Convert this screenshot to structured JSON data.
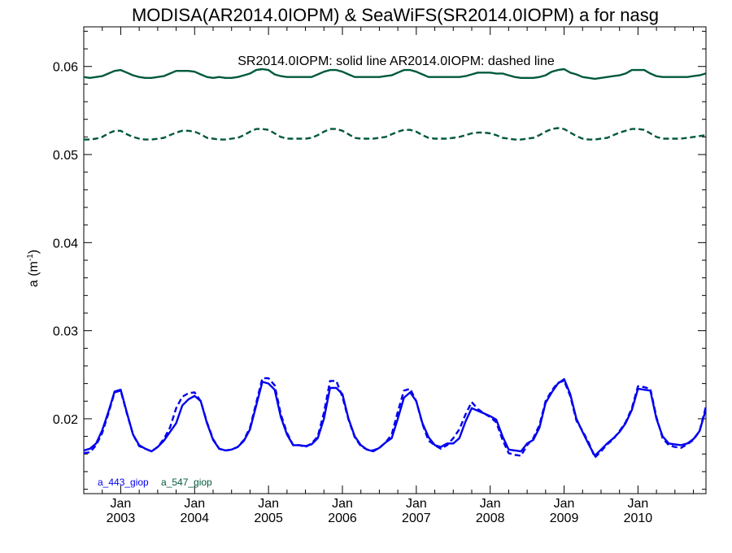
{
  "chart_data": {
    "type": "line",
    "title": "MODISA(AR2014.0IOPM) & SeaWiFS(SR2014.0IOPM)  a for nasg",
    "subtitle": "SR2014.0IOPM: solid line   AR2014.0IOPM: dashed line",
    "ylabel_main": "a (m",
    "ylabel_sup": "-1",
    "ylabel_end": ")",
    "xlabel": "",
    "xlim": [
      2002.5,
      2010.92
    ],
    "ylim": [
      0.0115,
      0.0645
    ],
    "yticks": [
      0.02,
      0.03,
      0.04,
      0.05,
      0.06
    ],
    "ytick_labels": [
      "0.02",
      "0.03",
      "0.04",
      "0.05",
      "0.06"
    ],
    "xticks": [
      2003.0,
      2004.0,
      2005.0,
      2006.0,
      2007.0,
      2008.0,
      2009.0,
      2010.0
    ],
    "xtick_month_labels": [
      "Jan",
      "Jan",
      "Jan",
      "Jan",
      "Jan",
      "Jan",
      "Jan",
      "Jan"
    ],
    "xtick_year_labels": [
      "2003",
      "2004",
      "2005",
      "2006",
      "2007",
      "2008",
      "2009",
      "2010"
    ],
    "legend": [
      {
        "label": "a_443_giop",
        "color": "#0000ee"
      },
      {
        "label": "a_547_giop",
        "color": "#00593a"
      }
    ],
    "legend_position": "bottom-left",
    "grid": false,
    "series": [
      {
        "name": "a_443_giop",
        "style": "solid",
        "color": "#0000ee",
        "x": [
          2002.5,
          2002.583,
          2002.667,
          2002.75,
          2002.833,
          2002.917,
          2003.0,
          2003.083,
          2003.167,
          2003.25,
          2003.333,
          2003.417,
          2003.5,
          2003.583,
          2003.667,
          2003.75,
          2003.833,
          2003.917,
          2004.0,
          2004.083,
          2004.167,
          2004.25,
          2004.333,
          2004.417,
          2004.5,
          2004.583,
          2004.667,
          2004.75,
          2004.833,
          2004.917,
          2005.0,
          2005.083,
          2005.167,
          2005.25,
          2005.333,
          2005.417,
          2005.5,
          2005.583,
          2005.667,
          2005.75,
          2005.833,
          2005.917,
          2006.0,
          2006.083,
          2006.167,
          2006.25,
          2006.333,
          2006.417,
          2006.5,
          2006.583,
          2006.667,
          2006.75,
          2006.833,
          2006.917,
          2007.0,
          2007.083,
          2007.167,
          2007.25,
          2007.333,
          2007.417,
          2007.5,
          2007.583,
          2007.667,
          2007.75,
          2007.833,
          2007.917,
          2008.0,
          2008.083,
          2008.167,
          2008.25,
          2008.333,
          2008.417,
          2008.5,
          2008.583,
          2008.667,
          2008.75,
          2008.833,
          2008.917,
          2009.0,
          2009.083,
          2009.167,
          2009.25,
          2009.333,
          2009.417,
          2009.5,
          2009.583,
          2009.667,
          2009.75,
          2009.833,
          2009.917,
          2010.0,
          2010.083,
          2010.167,
          2010.25,
          2010.333,
          2010.417,
          2010.5,
          2010.583,
          2010.667,
          2010.75,
          2010.833,
          2010.917
        ],
        "values": [
          0.0164,
          0.0166,
          0.0172,
          0.0187,
          0.0208,
          0.0231,
          0.0233,
          0.0207,
          0.0182,
          0.017,
          0.0166,
          0.0163,
          0.0168,
          0.0175,
          0.0185,
          0.0195,
          0.0215,
          0.0222,
          0.0226,
          0.022,
          0.0195,
          0.0176,
          0.0166,
          0.0164,
          0.0165,
          0.0168,
          0.0175,
          0.0188,
          0.0215,
          0.0242,
          0.024,
          0.0233,
          0.0202,
          0.0182,
          0.017,
          0.017,
          0.0169,
          0.0171,
          0.0178,
          0.02,
          0.0235,
          0.0235,
          0.0228,
          0.02,
          0.018,
          0.017,
          0.0165,
          0.0163,
          0.0167,
          0.0173,
          0.0178,
          0.02,
          0.0224,
          0.023,
          0.022,
          0.0195,
          0.0179,
          0.017,
          0.0168,
          0.0172,
          0.0172,
          0.0178,
          0.0197,
          0.0212,
          0.0209,
          0.0206,
          0.0203,
          0.0199,
          0.018,
          0.0165,
          0.0164,
          0.0163,
          0.0172,
          0.0176,
          0.019,
          0.0218,
          0.023,
          0.024,
          0.0245,
          0.0228,
          0.02,
          0.0185,
          0.0171,
          0.0158,
          0.0165,
          0.0172,
          0.0178,
          0.0185,
          0.0195,
          0.021,
          0.0234,
          0.0233,
          0.0232,
          0.02,
          0.018,
          0.0172,
          0.0171,
          0.017,
          0.0172,
          0.0177,
          0.0186,
          0.021
        ]
      },
      {
        "name": "a_443_giop",
        "style": "dashed",
        "color": "#0000ee",
        "x": [
          2002.5,
          2002.583,
          2002.667,
          2002.75,
          2002.833,
          2002.917,
          2003.0,
          2003.083,
          2003.167,
          2003.25,
          2003.333,
          2003.417,
          2003.5,
          2003.583,
          2003.667,
          2003.75,
          2003.833,
          2003.917,
          2004.0,
          2004.083,
          2004.167,
          2004.25,
          2004.333,
          2004.417,
          2004.5,
          2004.583,
          2004.667,
          2004.75,
          2004.833,
          2004.917,
          2005.0,
          2005.083,
          2005.167,
          2005.25,
          2005.333,
          2005.417,
          2005.5,
          2005.583,
          2005.667,
          2005.75,
          2005.833,
          2005.917,
          2006.0,
          2006.083,
          2006.167,
          2006.25,
          2006.333,
          2006.417,
          2006.5,
          2006.583,
          2006.667,
          2006.75,
          2006.833,
          2006.917,
          2007.0,
          2007.083,
          2007.167,
          2007.25,
          2007.333,
          2007.417,
          2007.5,
          2007.583,
          2007.667,
          2007.75,
          2007.833,
          2007.917,
          2008.0,
          2008.083,
          2008.167,
          2008.25,
          2008.333,
          2008.417,
          2008.5,
          2008.583,
          2008.667,
          2008.75,
          2008.833,
          2008.917,
          2009.0,
          2009.083,
          2009.167,
          2009.25,
          2009.333,
          2009.417,
          2009.5,
          2009.583,
          2009.667,
          2009.75,
          2009.833,
          2009.917,
          2010.0,
          2010.083,
          2010.167,
          2010.25,
          2010.333,
          2010.417,
          2010.5,
          2010.583,
          2010.667,
          2010.75,
          2010.833,
          2010.917
        ],
        "values": [
          0.0161,
          0.0162,
          0.017,
          0.0184,
          0.0206,
          0.023,
          0.0232,
          0.0206,
          0.0182,
          0.0169,
          0.0166,
          0.0163,
          0.0168,
          0.0177,
          0.019,
          0.0212,
          0.0225,
          0.0229,
          0.023,
          0.022,
          0.0196,
          0.0177,
          0.0166,
          0.0164,
          0.0165,
          0.0168,
          0.0176,
          0.019,
          0.0218,
          0.0246,
          0.0246,
          0.0238,
          0.0205,
          0.0184,
          0.017,
          0.017,
          0.0168,
          0.0172,
          0.018,
          0.0207,
          0.0243,
          0.0243,
          0.0225,
          0.0199,
          0.0179,
          0.0169,
          0.0165,
          0.0164,
          0.0167,
          0.0173,
          0.0182,
          0.0208,
          0.0232,
          0.0234,
          0.022,
          0.0194,
          0.0175,
          0.017,
          0.0166,
          0.017,
          0.0178,
          0.0188,
          0.0205,
          0.0219,
          0.0211,
          0.0206,
          0.0202,
          0.0196,
          0.0176,
          0.0161,
          0.0159,
          0.0158,
          0.017,
          0.0178,
          0.0193,
          0.022,
          0.0232,
          0.0241,
          0.0243,
          0.0226,
          0.0198,
          0.0186,
          0.0173,
          0.0156,
          0.0163,
          0.0171,
          0.0177,
          0.0186,
          0.0196,
          0.0212,
          0.0237,
          0.0236,
          0.0234,
          0.0202,
          0.0178,
          0.017,
          0.0168,
          0.0167,
          0.0171,
          0.0176,
          0.0186,
          0.0213
        ]
      },
      {
        "name": "a_547_giop",
        "style": "solid",
        "color": "#00593a",
        "x": [
          2002.5,
          2002.583,
          2002.667,
          2002.75,
          2002.833,
          2002.917,
          2003.0,
          2003.083,
          2003.167,
          2003.25,
          2003.333,
          2003.417,
          2003.5,
          2003.583,
          2003.667,
          2003.75,
          2003.833,
          2003.917,
          2004.0,
          2004.083,
          2004.167,
          2004.25,
          2004.333,
          2004.417,
          2004.5,
          2004.583,
          2004.667,
          2004.75,
          2004.833,
          2004.917,
          2005.0,
          2005.083,
          2005.167,
          2005.25,
          2005.333,
          2005.417,
          2005.5,
          2005.583,
          2005.667,
          2005.75,
          2005.833,
          2005.917,
          2006.0,
          2006.083,
          2006.167,
          2006.25,
          2006.333,
          2006.417,
          2006.5,
          2006.583,
          2006.667,
          2006.75,
          2006.833,
          2006.917,
          2007.0,
          2007.083,
          2007.167,
          2007.25,
          2007.333,
          2007.417,
          2007.5,
          2007.583,
          2007.667,
          2007.75,
          2007.833,
          2007.917,
          2008.0,
          2008.083,
          2008.167,
          2008.25,
          2008.333,
          2008.417,
          2008.5,
          2008.583,
          2008.667,
          2008.75,
          2008.833,
          2008.917,
          2009.0,
          2009.083,
          2009.167,
          2009.25,
          2009.333,
          2009.417,
          2009.5,
          2009.583,
          2009.667,
          2009.75,
          2009.833,
          2009.917,
          2010.0,
          2010.083,
          2010.167,
          2010.25,
          2010.333,
          2010.417,
          2010.5,
          2010.583,
          2010.667,
          2010.75,
          2010.833,
          2010.917
        ],
        "values": [
          0.0588,
          0.0587,
          0.0588,
          0.0589,
          0.0592,
          0.0595,
          0.0596,
          0.0593,
          0.059,
          0.0588,
          0.0587,
          0.0587,
          0.0588,
          0.0589,
          0.0592,
          0.0595,
          0.0595,
          0.0595,
          0.0594,
          0.0591,
          0.0588,
          0.0587,
          0.0588,
          0.0587,
          0.0587,
          0.0588,
          0.059,
          0.0592,
          0.0596,
          0.0597,
          0.0596,
          0.0591,
          0.0589,
          0.0588,
          0.0588,
          0.0588,
          0.0588,
          0.0588,
          0.0591,
          0.0594,
          0.0596,
          0.0596,
          0.0594,
          0.0591,
          0.0588,
          0.0588,
          0.0588,
          0.0588,
          0.0588,
          0.0589,
          0.059,
          0.0593,
          0.0596,
          0.0596,
          0.0594,
          0.0591,
          0.0588,
          0.0588,
          0.0588,
          0.0588,
          0.0588,
          0.0588,
          0.0589,
          0.0591,
          0.0593,
          0.0593,
          0.0593,
          0.0592,
          0.0592,
          0.059,
          0.0588,
          0.0587,
          0.0587,
          0.0587,
          0.0588,
          0.059,
          0.0594,
          0.0596,
          0.0597,
          0.0593,
          0.0591,
          0.0588,
          0.0587,
          0.0586,
          0.0587,
          0.0588,
          0.0589,
          0.059,
          0.0592,
          0.0596,
          0.0596,
          0.0596,
          0.0592,
          0.0589,
          0.0588,
          0.0588,
          0.0588,
          0.0588,
          0.0588,
          0.0589,
          0.059,
          0.0592
        ]
      },
      {
        "name": "a_547_giop",
        "style": "dashed",
        "color": "#00593a",
        "x": [
          2002.5,
          2002.583,
          2002.667,
          2002.75,
          2002.833,
          2002.917,
          2003.0,
          2003.083,
          2003.167,
          2003.25,
          2003.333,
          2003.417,
          2003.5,
          2003.583,
          2003.667,
          2003.75,
          2003.833,
          2003.917,
          2004.0,
          2004.083,
          2004.167,
          2004.25,
          2004.333,
          2004.417,
          2004.5,
          2004.583,
          2004.667,
          2004.75,
          2004.833,
          2004.917,
          2005.0,
          2005.083,
          2005.167,
          2005.25,
          2005.333,
          2005.417,
          2005.5,
          2005.583,
          2005.667,
          2005.75,
          2005.833,
          2005.917,
          2006.0,
          2006.083,
          2006.167,
          2006.25,
          2006.333,
          2006.417,
          2006.5,
          2006.583,
          2006.667,
          2006.75,
          2006.833,
          2006.917,
          2007.0,
          2007.083,
          2007.167,
          2007.25,
          2007.333,
          2007.417,
          2007.5,
          2007.583,
          2007.667,
          2007.75,
          2007.833,
          2007.917,
          2008.0,
          2008.083,
          2008.167,
          2008.25,
          2008.333,
          2008.417,
          2008.5,
          2008.583,
          2008.667,
          2008.75,
          2008.833,
          2008.917,
          2009.0,
          2009.083,
          2009.167,
          2009.25,
          2009.333,
          2009.417,
          2009.5,
          2009.583,
          2009.667,
          2009.75,
          2009.833,
          2009.917,
          2010.0,
          2010.083,
          2010.167,
          2010.25,
          2010.333,
          2010.417,
          2010.5,
          2010.583,
          2010.667,
          2010.75,
          2010.833,
          2010.917
        ],
        "values": [
          0.0517,
          0.0517,
          0.0518,
          0.052,
          0.0524,
          0.0527,
          0.0527,
          0.0523,
          0.052,
          0.0518,
          0.0517,
          0.0517,
          0.0518,
          0.0519,
          0.0522,
          0.0525,
          0.0527,
          0.0527,
          0.0526,
          0.0523,
          0.0519,
          0.0518,
          0.0517,
          0.0517,
          0.0518,
          0.0519,
          0.0522,
          0.0526,
          0.0529,
          0.0529,
          0.0528,
          0.0524,
          0.052,
          0.0518,
          0.0518,
          0.0518,
          0.0518,
          0.0519,
          0.0522,
          0.0526,
          0.0529,
          0.0529,
          0.0527,
          0.0523,
          0.0519,
          0.0518,
          0.0518,
          0.0518,
          0.0519,
          0.052,
          0.0523,
          0.0526,
          0.0528,
          0.0528,
          0.0526,
          0.0522,
          0.0519,
          0.0518,
          0.0518,
          0.0518,
          0.0519,
          0.052,
          0.0522,
          0.0524,
          0.0525,
          0.0525,
          0.0524,
          0.0522,
          0.0519,
          0.0518,
          0.0517,
          0.0517,
          0.0518,
          0.0519,
          0.0522,
          0.0526,
          0.0529,
          0.053,
          0.0529,
          0.0525,
          0.0521,
          0.0518,
          0.0517,
          0.0517,
          0.0518,
          0.0519,
          0.0522,
          0.0525,
          0.0527,
          0.0529,
          0.0529,
          0.0528,
          0.0524,
          0.052,
          0.0518,
          0.0518,
          0.0518,
          0.0518,
          0.0519,
          0.052,
          0.0521,
          0.0522
        ]
      }
    ]
  }
}
